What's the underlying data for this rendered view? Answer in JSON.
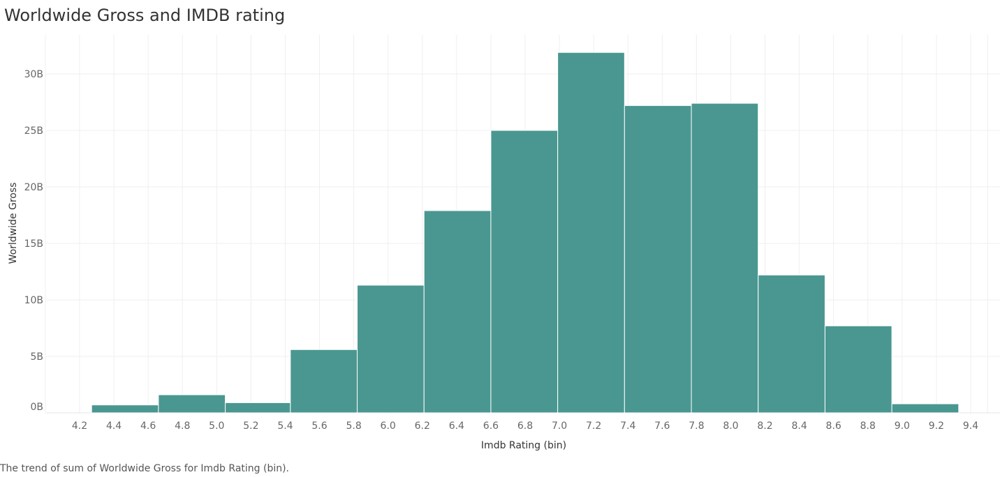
{
  "title": "Worldwide Gross and IMDB rating",
  "caption": "The trend of sum of Worldwide Gross for Imdb Rating (bin).",
  "chart_data": {
    "type": "bar",
    "xlabel": "Imdb Rating (bin)",
    "ylabel": "Worldwide Gross",
    "x_ticks": [
      "4.2",
      "4.4",
      "4.6",
      "4.8",
      "5.0",
      "5.2",
      "5.4",
      "5.6",
      "5.8",
      "6.0",
      "6.2",
      "6.4",
      "6.6",
      "6.8",
      "7.0",
      "7.2",
      "7.4",
      "7.6",
      "7.8",
      "8.0",
      "8.2",
      "8.4",
      "8.6",
      "8.8",
      "9.0",
      "9.2",
      "9.4"
    ],
    "y_ticks": [
      {
        "value": 0,
        "label": "0B"
      },
      {
        "value": 5,
        "label": "5B"
      },
      {
        "value": 10,
        "label": "10B"
      },
      {
        "value": 15,
        "label": "15B"
      },
      {
        "value": 20,
        "label": "20B"
      },
      {
        "value": 25,
        "label": "25B"
      },
      {
        "value": 30,
        "label": "30B"
      }
    ],
    "xlim": [
      4.0,
      9.5
    ],
    "ylim": [
      -0.35,
      33.5
    ],
    "y_unit": "billions",
    "bins": [
      {
        "start": 4.27,
        "end": 4.66,
        "value": 0.7
      },
      {
        "start": 4.66,
        "end": 5.05,
        "value": 1.6
      },
      {
        "start": 5.05,
        "end": 5.43,
        "value": 0.9
      },
      {
        "start": 5.43,
        "end": 5.82,
        "value": 5.6
      },
      {
        "start": 5.82,
        "end": 6.21,
        "value": 11.3
      },
      {
        "start": 6.21,
        "end": 6.6,
        "value": 17.9
      },
      {
        "start": 6.6,
        "end": 6.99,
        "value": 25.0
      },
      {
        "start": 6.99,
        "end": 7.38,
        "value": 31.9
      },
      {
        "start": 7.38,
        "end": 7.77,
        "value": 27.2
      },
      {
        "start": 7.77,
        "end": 8.16,
        "value": 27.4
      },
      {
        "start": 8.16,
        "end": 8.55,
        "value": 12.2
      },
      {
        "start": 8.55,
        "end": 8.94,
        "value": 7.7
      },
      {
        "start": 8.94,
        "end": 9.33,
        "value": 0.8
      }
    ],
    "bar_color": "#4a9791",
    "grid": true
  }
}
